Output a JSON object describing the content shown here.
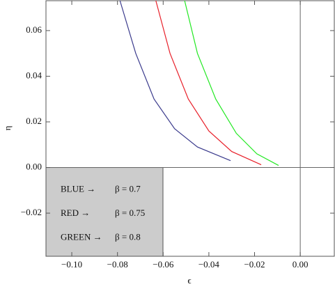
{
  "chart_data": {
    "type": "line",
    "x_label": "ϵ",
    "y_label": "η",
    "series": [
      {
        "name": "BLUE →",
        "beta_label": "β = 0.7",
        "color": "#3a3a8c",
        "x": [
          -0.0789,
          -0.072,
          -0.064,
          -0.055,
          -0.045,
          -0.0305
        ],
        "values": [
          0.0731,
          0.05,
          0.03,
          0.017,
          0.009,
          0.003
        ]
      },
      {
        "name": "RED →",
        "beta_label": "β = 0.75",
        "color": "#e8202a",
        "x": [
          -0.0632,
          -0.057,
          -0.049,
          -0.04,
          -0.03,
          -0.0171
        ],
        "values": [
          0.0731,
          0.05,
          0.03,
          0.016,
          0.007,
          0.0012
        ]
      },
      {
        "name": "GREEN →",
        "beta_label": "β  = 0.8",
        "color": "#22e822",
        "x": [
          -0.0506,
          -0.045,
          -0.037,
          -0.028,
          -0.019,
          -0.0095
        ],
        "values": [
          0.0731,
          0.05,
          0.03,
          0.015,
          0.006,
          0.0009
        ]
      }
    ],
    "xlim": [
      -0.1113,
      0.0149
    ],
    "ylim": [
      -0.0389,
      0.0731
    ],
    "xticks": [
      {
        "value": -0.1,
        "label": "−0.10"
      },
      {
        "value": -0.08,
        "label": "−0.08"
      },
      {
        "value": -0.06,
        "label": "−0.06"
      },
      {
        "value": -0.04,
        "label": "−0.04"
      },
      {
        "value": -0.02,
        "label": "−0.02"
      },
      {
        "value": 0,
        "label": "0.00"
      }
    ],
    "yticks": [
      {
        "value": -0.02,
        "label": "−0.02"
      },
      {
        "value": 0,
        "label": "0.00"
      },
      0.02,
      0.04,
      0.06
    ],
    "legend": "lower left",
    "zero_lines": true,
    "grid": false
  }
}
